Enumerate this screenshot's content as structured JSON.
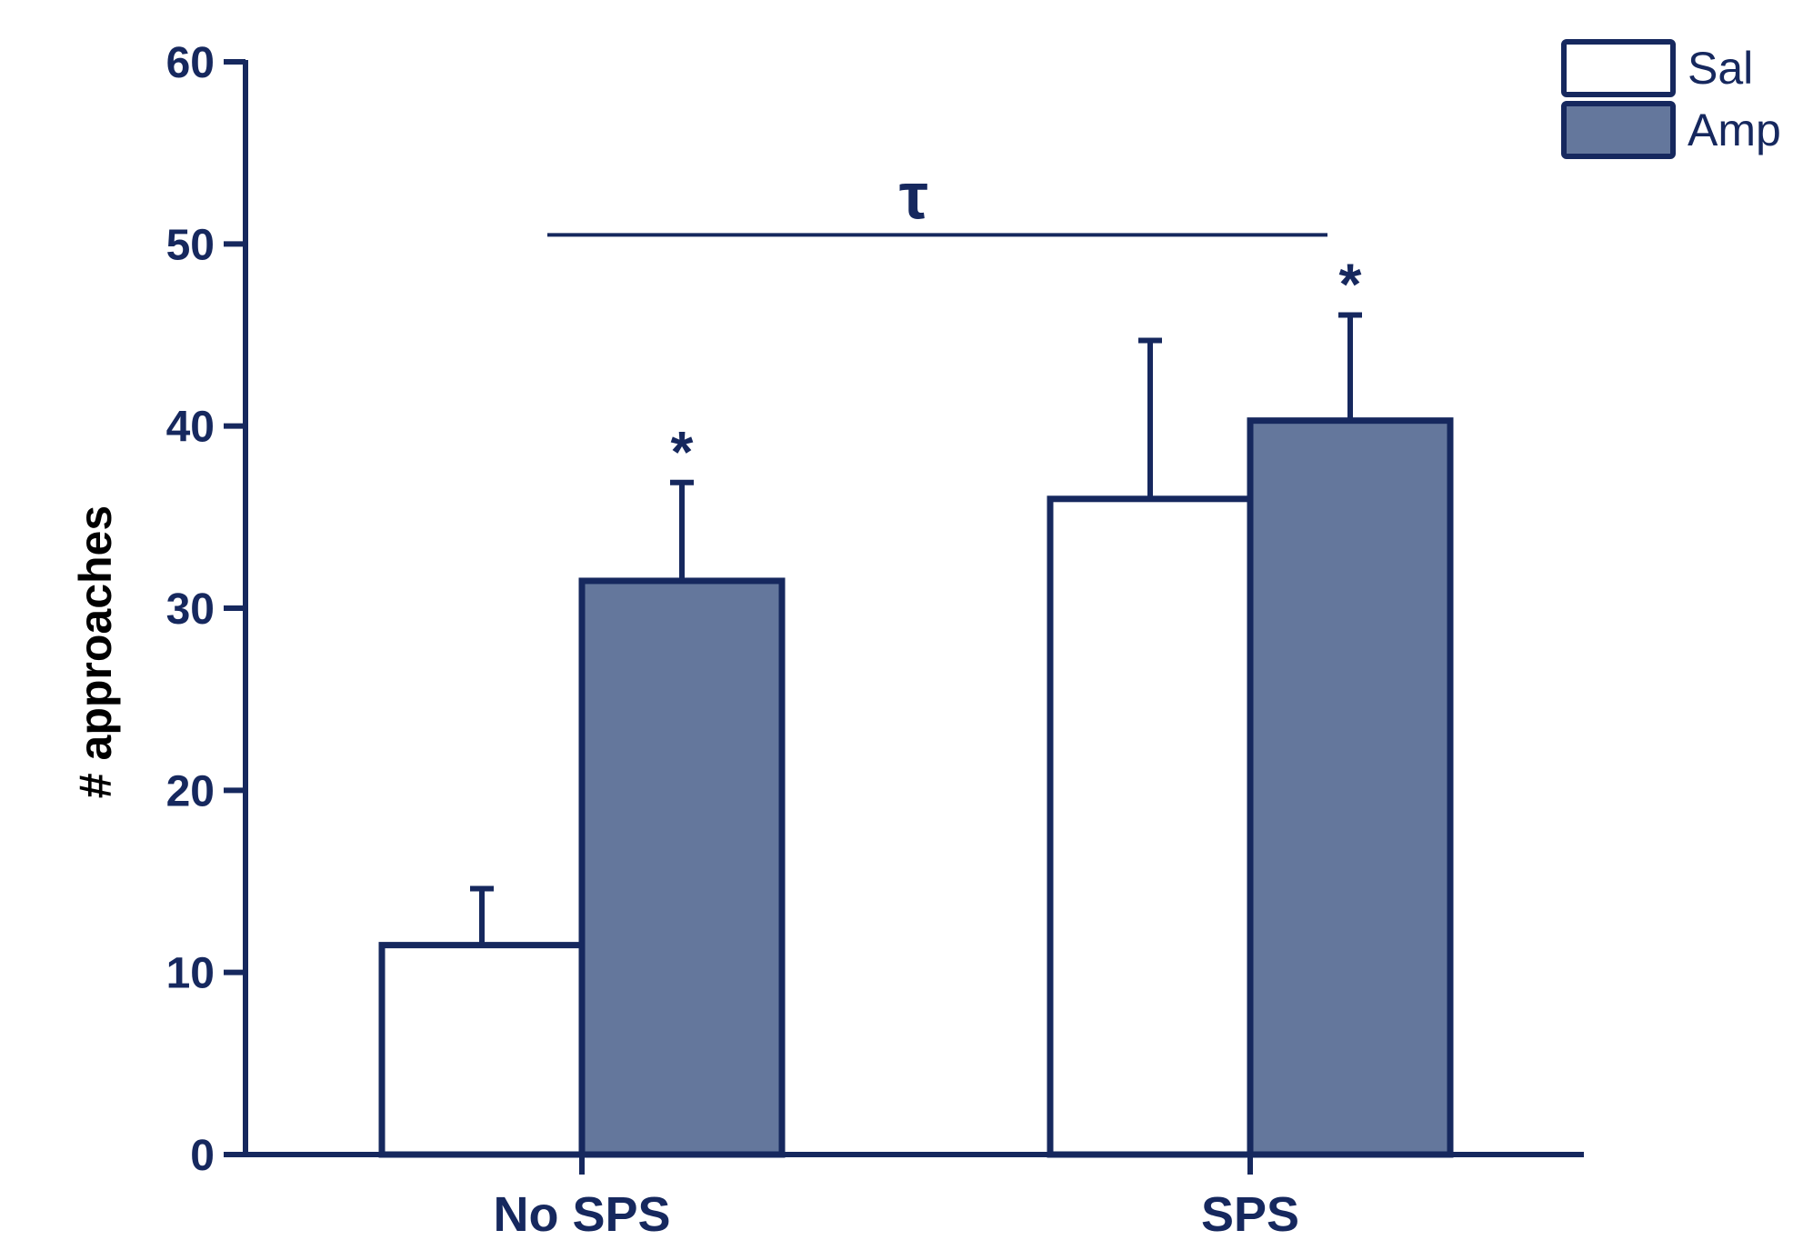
{
  "chart_data": {
    "type": "bar",
    "title": "",
    "xlabel": "",
    "ylabel": "# approaches",
    "ylim": [
      0,
      60
    ],
    "yticks": [
      0,
      10,
      20,
      30,
      40,
      50,
      60
    ],
    "ytick_labels": [
      "0",
      "10",
      "20",
      "30",
      "40",
      "50",
      "60"
    ],
    "categories": [
      "No SPS",
      "SPS"
    ],
    "series": [
      {
        "name": "Sal",
        "values": [
          11.5,
          36.0
        ],
        "errors": [
          3.1,
          8.7
        ],
        "annotations": [
          "",
          ""
        ],
        "fill": "#ffffff"
      },
      {
        "name": "Amp",
        "values": [
          31.5,
          40.3
        ],
        "errors": [
          5.4,
          5.8
        ],
        "annotations": [
          "*",
          "*"
        ],
        "fill": "#64779c"
      }
    ],
    "significance_bar": {
      "symbol": "τ",
      "from_category": "No SPS",
      "to_category": "SPS",
      "level": 50.5
    },
    "legend": {
      "position": "top-right",
      "entries": [
        "Sal",
        "Amp"
      ]
    },
    "grid": false
  },
  "colors": {
    "axis": "#16285e",
    "bar_outline": "#16285e",
    "amp_fill": "#64779c",
    "sal_fill": "#ffffff",
    "text": "#16285e"
  }
}
